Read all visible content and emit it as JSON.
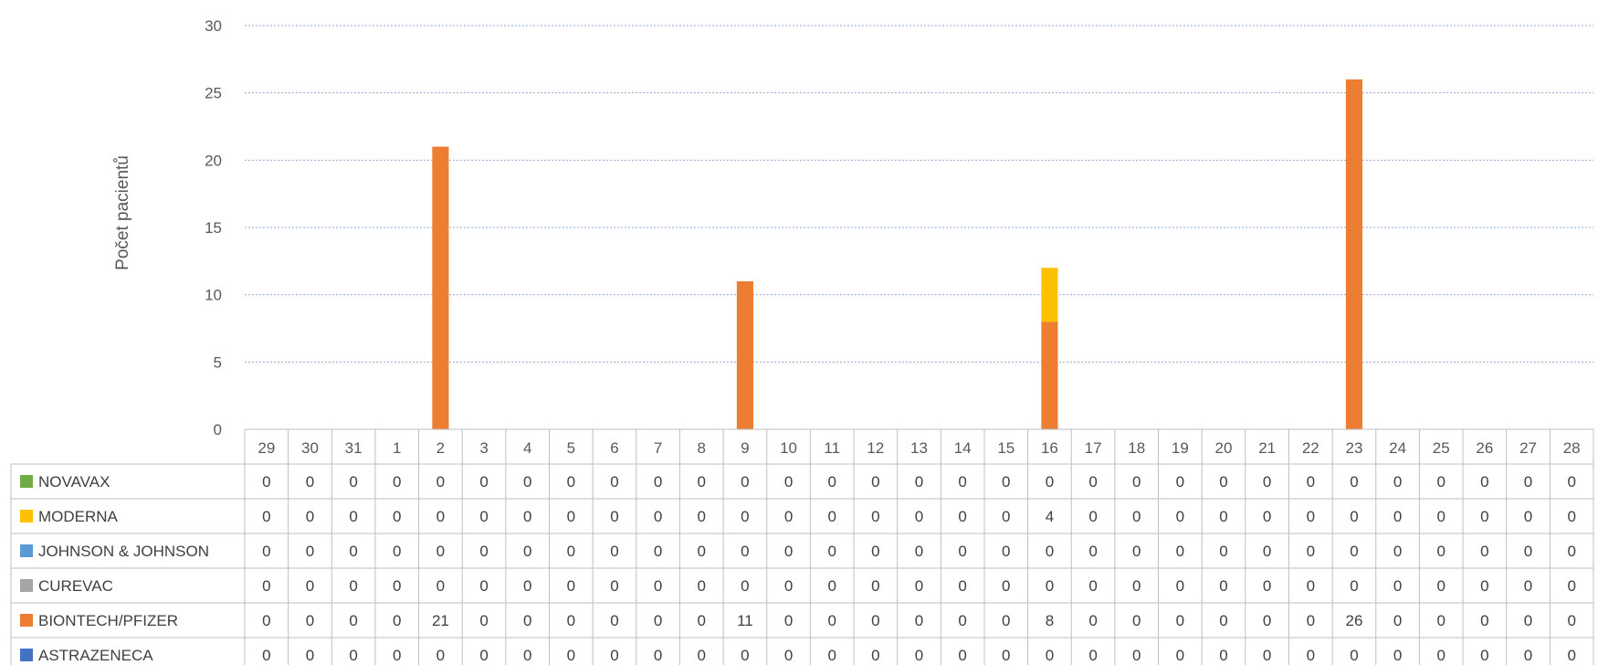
{
  "chart_data": {
    "type": "bar",
    "stacked": true,
    "title": "",
    "xlabel": "",
    "ylabel": "Počet pacientů",
    "ylim": [
      0,
      30
    ],
    "yticks": [
      0,
      5,
      10,
      15,
      20,
      25,
      30
    ],
    "grid": true,
    "legend": "data-table-left",
    "categories": [
      "29",
      "30",
      "31",
      "1",
      "2",
      "3",
      "4",
      "5",
      "6",
      "7",
      "8",
      "9",
      "10",
      "11",
      "12",
      "13",
      "14",
      "15",
      "16",
      "17",
      "18",
      "19",
      "20",
      "21",
      "22",
      "23",
      "24",
      "25",
      "26",
      "27",
      "28"
    ],
    "series": [
      {
        "name": "NOVAVAX",
        "color": "#70AD47",
        "values": [
          0,
          0,
          0,
          0,
          0,
          0,
          0,
          0,
          0,
          0,
          0,
          0,
          0,
          0,
          0,
          0,
          0,
          0,
          0,
          0,
          0,
          0,
          0,
          0,
          0,
          0,
          0,
          0,
          0,
          0,
          0
        ]
      },
      {
        "name": "MODERNA",
        "color": "#FFC000",
        "values": [
          0,
          0,
          0,
          0,
          0,
          0,
          0,
          0,
          0,
          0,
          0,
          0,
          0,
          0,
          0,
          0,
          0,
          0,
          4,
          0,
          0,
          0,
          0,
          0,
          0,
          0,
          0,
          0,
          0,
          0,
          0
        ]
      },
      {
        "name": "JOHNSON & JOHNSON",
        "color": "#5B9BD5",
        "values": [
          0,
          0,
          0,
          0,
          0,
          0,
          0,
          0,
          0,
          0,
          0,
          0,
          0,
          0,
          0,
          0,
          0,
          0,
          0,
          0,
          0,
          0,
          0,
          0,
          0,
          0,
          0,
          0,
          0,
          0,
          0
        ]
      },
      {
        "name": "CUREVAC",
        "color": "#A5A5A5",
        "values": [
          0,
          0,
          0,
          0,
          0,
          0,
          0,
          0,
          0,
          0,
          0,
          0,
          0,
          0,
          0,
          0,
          0,
          0,
          0,
          0,
          0,
          0,
          0,
          0,
          0,
          0,
          0,
          0,
          0,
          0,
          0
        ]
      },
      {
        "name": "BIONTECH/PFIZER",
        "color": "#ED7D31",
        "values": [
          0,
          0,
          0,
          0,
          21,
          0,
          0,
          0,
          0,
          0,
          0,
          11,
          0,
          0,
          0,
          0,
          0,
          0,
          8,
          0,
          0,
          0,
          0,
          0,
          0,
          26,
          0,
          0,
          0,
          0,
          0
        ]
      },
      {
        "name": "ASTRAZENECA",
        "color": "#4472C4",
        "values": [
          0,
          0,
          0,
          0,
          0,
          0,
          0,
          0,
          0,
          0,
          0,
          0,
          0,
          0,
          0,
          0,
          0,
          0,
          0,
          0,
          0,
          0,
          0,
          0,
          0,
          0,
          0,
          0,
          0,
          0,
          0
        ]
      }
    ],
    "stack_order": [
      "ASTRAZENECA",
      "BIONTECH/PFIZER",
      "CUREVAC",
      "JOHNSON & JOHNSON",
      "MODERNA",
      "NOVAVAX"
    ]
  }
}
